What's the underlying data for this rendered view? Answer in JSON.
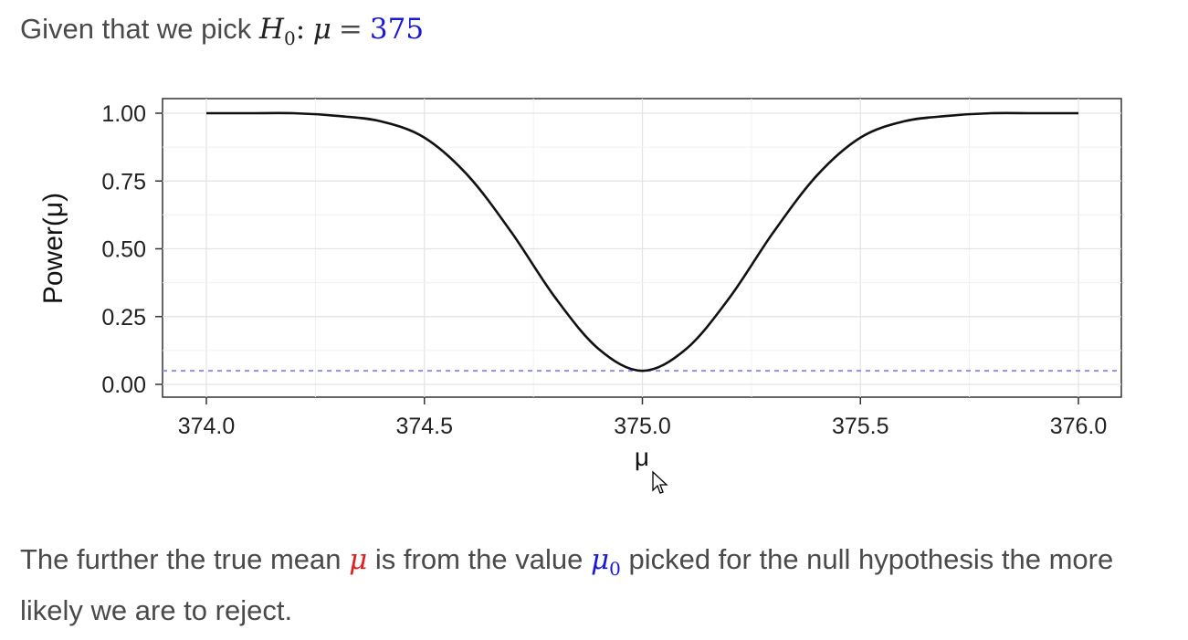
{
  "heading": {
    "prefix": "Given that we pick ",
    "h_symbol": "H",
    "h_subscript": "0",
    "colon": ":",
    "mu": "μ",
    "equals": "=",
    "value": "375",
    "value_color": "#1a1ad6"
  },
  "chart_data": {
    "type": "line",
    "xlabel": "μ",
    "ylabel": "Power(μ)",
    "xlim": [
      374.0,
      376.0
    ],
    "ylim": [
      0.0,
      1.0
    ],
    "x_ticks": [
      "374.0",
      "374.5",
      "375.0",
      "375.5",
      "376.0"
    ],
    "y_ticks": [
      "0.00",
      "0.25",
      "0.50",
      "0.75",
      "1.00"
    ],
    "grid": true,
    "series": [
      {
        "x": [
          374.0,
          374.1,
          374.2,
          374.3,
          374.4,
          374.5,
          374.6,
          374.7,
          374.8,
          374.9,
          375.0,
          375.1,
          375.2,
          375.3,
          375.4,
          375.5,
          375.6,
          375.7,
          375.8,
          375.9,
          376.0
        ],
        "y": [
          1.0,
          1.0,
          1.0,
          0.99,
          0.97,
          0.91,
          0.77,
          0.56,
          0.32,
          0.13,
          0.05,
          0.13,
          0.32,
          0.56,
          0.77,
          0.91,
          0.97,
          0.99,
          1.0,
          1.0,
          1.0
        ],
        "color": "#111111"
      }
    ],
    "reference_line": {
      "y": 0.05,
      "color": "#8f8ff0",
      "style": "dashed"
    }
  },
  "paragraph": {
    "part1": "The further the true mean ",
    "mu": "μ",
    "part2": " is from the value ",
    "mu0": "μ",
    "mu0_sub": "0",
    "part3": " picked for the null hypothesis the more likely we are to reject."
  },
  "colors": {
    "text": "#4a4a4a",
    "mu_red": "#e0201f",
    "mu_blue": "#1a1ad6"
  }
}
